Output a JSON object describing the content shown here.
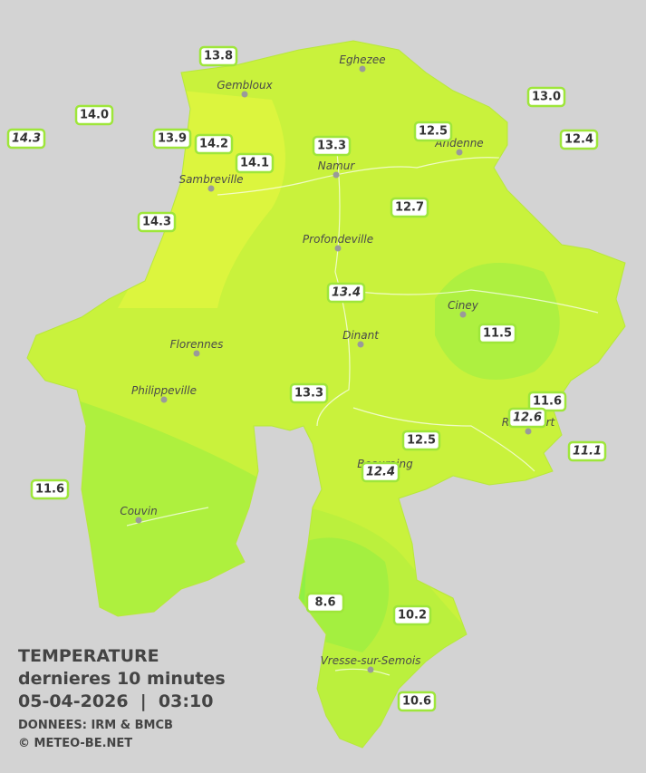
{
  "cities": [
    "Eghezee",
    "Gembloux",
    "Andenne",
    "Namur",
    "Sambreville",
    "Profondeville",
    "Ciney",
    "Dinant",
    "Florennes",
    "Philippeville",
    "Rochefort",
    "Beauraing",
    "Couvin",
    "Vresse-sur-Semois"
  ],
  "stations": [
    "13.8",
    "14.0",
    "14.3",
    "13.9",
    "14.2",
    "14.1",
    "13.3",
    "12.5",
    "13.0",
    "12.4",
    "14.3",
    "12.7",
    "13.4",
    "11.5",
    "13.3",
    "11.6",
    "12.6",
    "11.1",
    "12.5",
    "12.4",
    "11.6",
    "8.6",
    "10.2",
    "10.6"
  ],
  "legend": {
    "title": "TEMPERATURE",
    "subtitle": "dernieres 10 minutes",
    "datetime": "05-04-2026  |  03:10",
    "source": "DONNEES: IRM & BMCB",
    "copyright": "© METEO-BE.NET"
  }
}
